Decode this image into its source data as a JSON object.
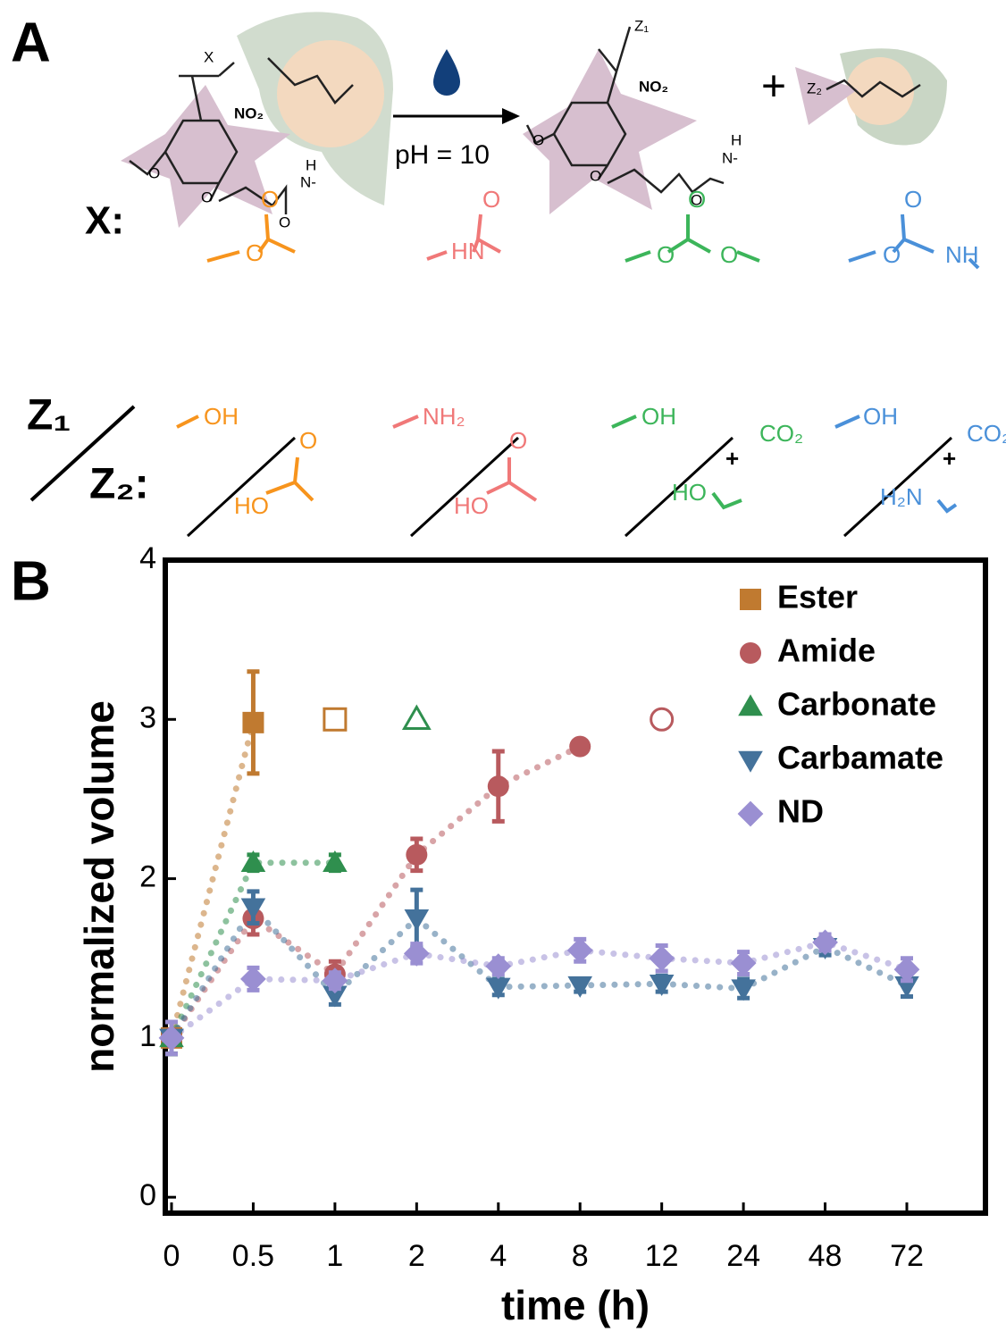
{
  "panel_a": {
    "label": "A",
    "condition": "pH = 10",
    "plus": "+",
    "reactant": {
      "x": "X",
      "no2": "NO₂",
      "o_methoxy": "O",
      "o_ether": "O",
      "h": "H",
      "n": "N-",
      "o_carbonyl": "O"
    },
    "product": {
      "z1": "Z₁",
      "no2": "NO₂",
      "o_methoxy": "O",
      "o_ether": "O",
      "h": "H",
      "n": "N-",
      "o_carbonyl": "O"
    },
    "fragment": {
      "z2": "Z₂"
    },
    "x_label": "X:",
    "z1_label": "Z₁",
    "z2_label": "Z₂:",
    "linkers": [
      {
        "color": "#f7941d",
        "x_texts": [
          "O",
          "O"
        ],
        "z1_texts": [
          "OH"
        ],
        "z2_texts": [
          "O",
          "HO"
        ]
      },
      {
        "color": "#f07878",
        "x_texts": [
          "O",
          "HN"
        ],
        "z1_texts": [
          "NH₂"
        ],
        "z2_texts": [
          "O",
          "HO"
        ]
      },
      {
        "color": "#3cb55a",
        "x_texts": [
          "O",
          "O",
          "O"
        ],
        "z1_texts": [
          "OH"
        ],
        "z2_texts": [
          "CO₂",
          "+",
          "HO"
        ]
      },
      {
        "color": "#4a90d9",
        "x_texts": [
          "O",
          "O",
          "NH"
        ],
        "z1_texts": [
          "OH"
        ],
        "z2_texts": [
          "CO₂",
          "+",
          "H₂N"
        ]
      }
    ]
  },
  "chart_data": {
    "type": "line",
    "label": "B",
    "x_label": "time (h)",
    "y_label": "normalized volume",
    "categories": [
      "0",
      "0.5",
      "1",
      "2",
      "4",
      "8",
      "12",
      "24",
      "48",
      "72"
    ],
    "ylim": [
      -0.1,
      4
    ],
    "yticks": [
      0,
      1,
      2,
      3,
      4
    ],
    "legend": "upper right",
    "series": [
      {
        "name": "Ester",
        "color": "#c07a30",
        "marker": "square",
        "values": [
          1.0,
          2.98,
          null,
          null,
          null,
          null,
          null,
          null,
          null,
          null
        ],
        "errors": [
          0.1,
          0.32,
          null,
          null,
          null,
          null,
          null,
          null,
          null,
          null
        ],
        "open_values": [
          null,
          null,
          3,
          null,
          null,
          null,
          null,
          null,
          null,
          null
        ]
      },
      {
        "name": "Amide",
        "color": "#b85a5e",
        "marker": "circle",
        "values": [
          1.0,
          1.75,
          1.4,
          2.15,
          2.58,
          2.83,
          null,
          null,
          null,
          null
        ],
        "errors": [
          0.1,
          0.1,
          0.08,
          0.1,
          0.22,
          null,
          null,
          null,
          null,
          null
        ],
        "open_values": [
          null,
          null,
          null,
          null,
          null,
          null,
          3,
          null,
          null,
          null
        ]
      },
      {
        "name": "Carbonate",
        "color": "#2f8f4e",
        "marker": "triangle-up",
        "values": [
          1.0,
          2.1,
          2.1,
          null,
          null,
          null,
          null,
          null,
          null,
          null
        ],
        "errors": [
          0.1,
          0.05,
          0.05,
          null,
          null,
          null,
          null,
          null,
          null,
          null
        ],
        "open_values": [
          null,
          null,
          null,
          3,
          null,
          null,
          null,
          null,
          null,
          null
        ]
      },
      {
        "name": "Carbamate",
        "color": "#44729b",
        "marker": "triangle-down",
        "values": [
          1.0,
          1.82,
          1.27,
          1.75,
          1.32,
          1.33,
          1.34,
          1.31,
          1.57,
          1.33
        ],
        "errors": [
          0.1,
          0.1,
          0.06,
          0.18,
          0.05,
          0.04,
          0.05,
          0.06,
          0.05,
          0.07
        ],
        "open_values": [
          null,
          null,
          null,
          null,
          null,
          null,
          null,
          null,
          null,
          null
        ]
      },
      {
        "name": "ND",
        "color": "#9a8fd2",
        "marker": "diamond",
        "values": [
          1.0,
          1.37,
          1.36,
          1.53,
          1.45,
          1.55,
          1.5,
          1.47,
          1.6,
          1.43
        ],
        "errors": [
          0.1,
          0.07,
          0.05,
          0.06,
          0.05,
          0.07,
          0.08,
          0.07,
          0.05,
          0.07
        ],
        "open_values": [
          null,
          null,
          null,
          null,
          null,
          null,
          null,
          null,
          null,
          null
        ]
      }
    ]
  }
}
